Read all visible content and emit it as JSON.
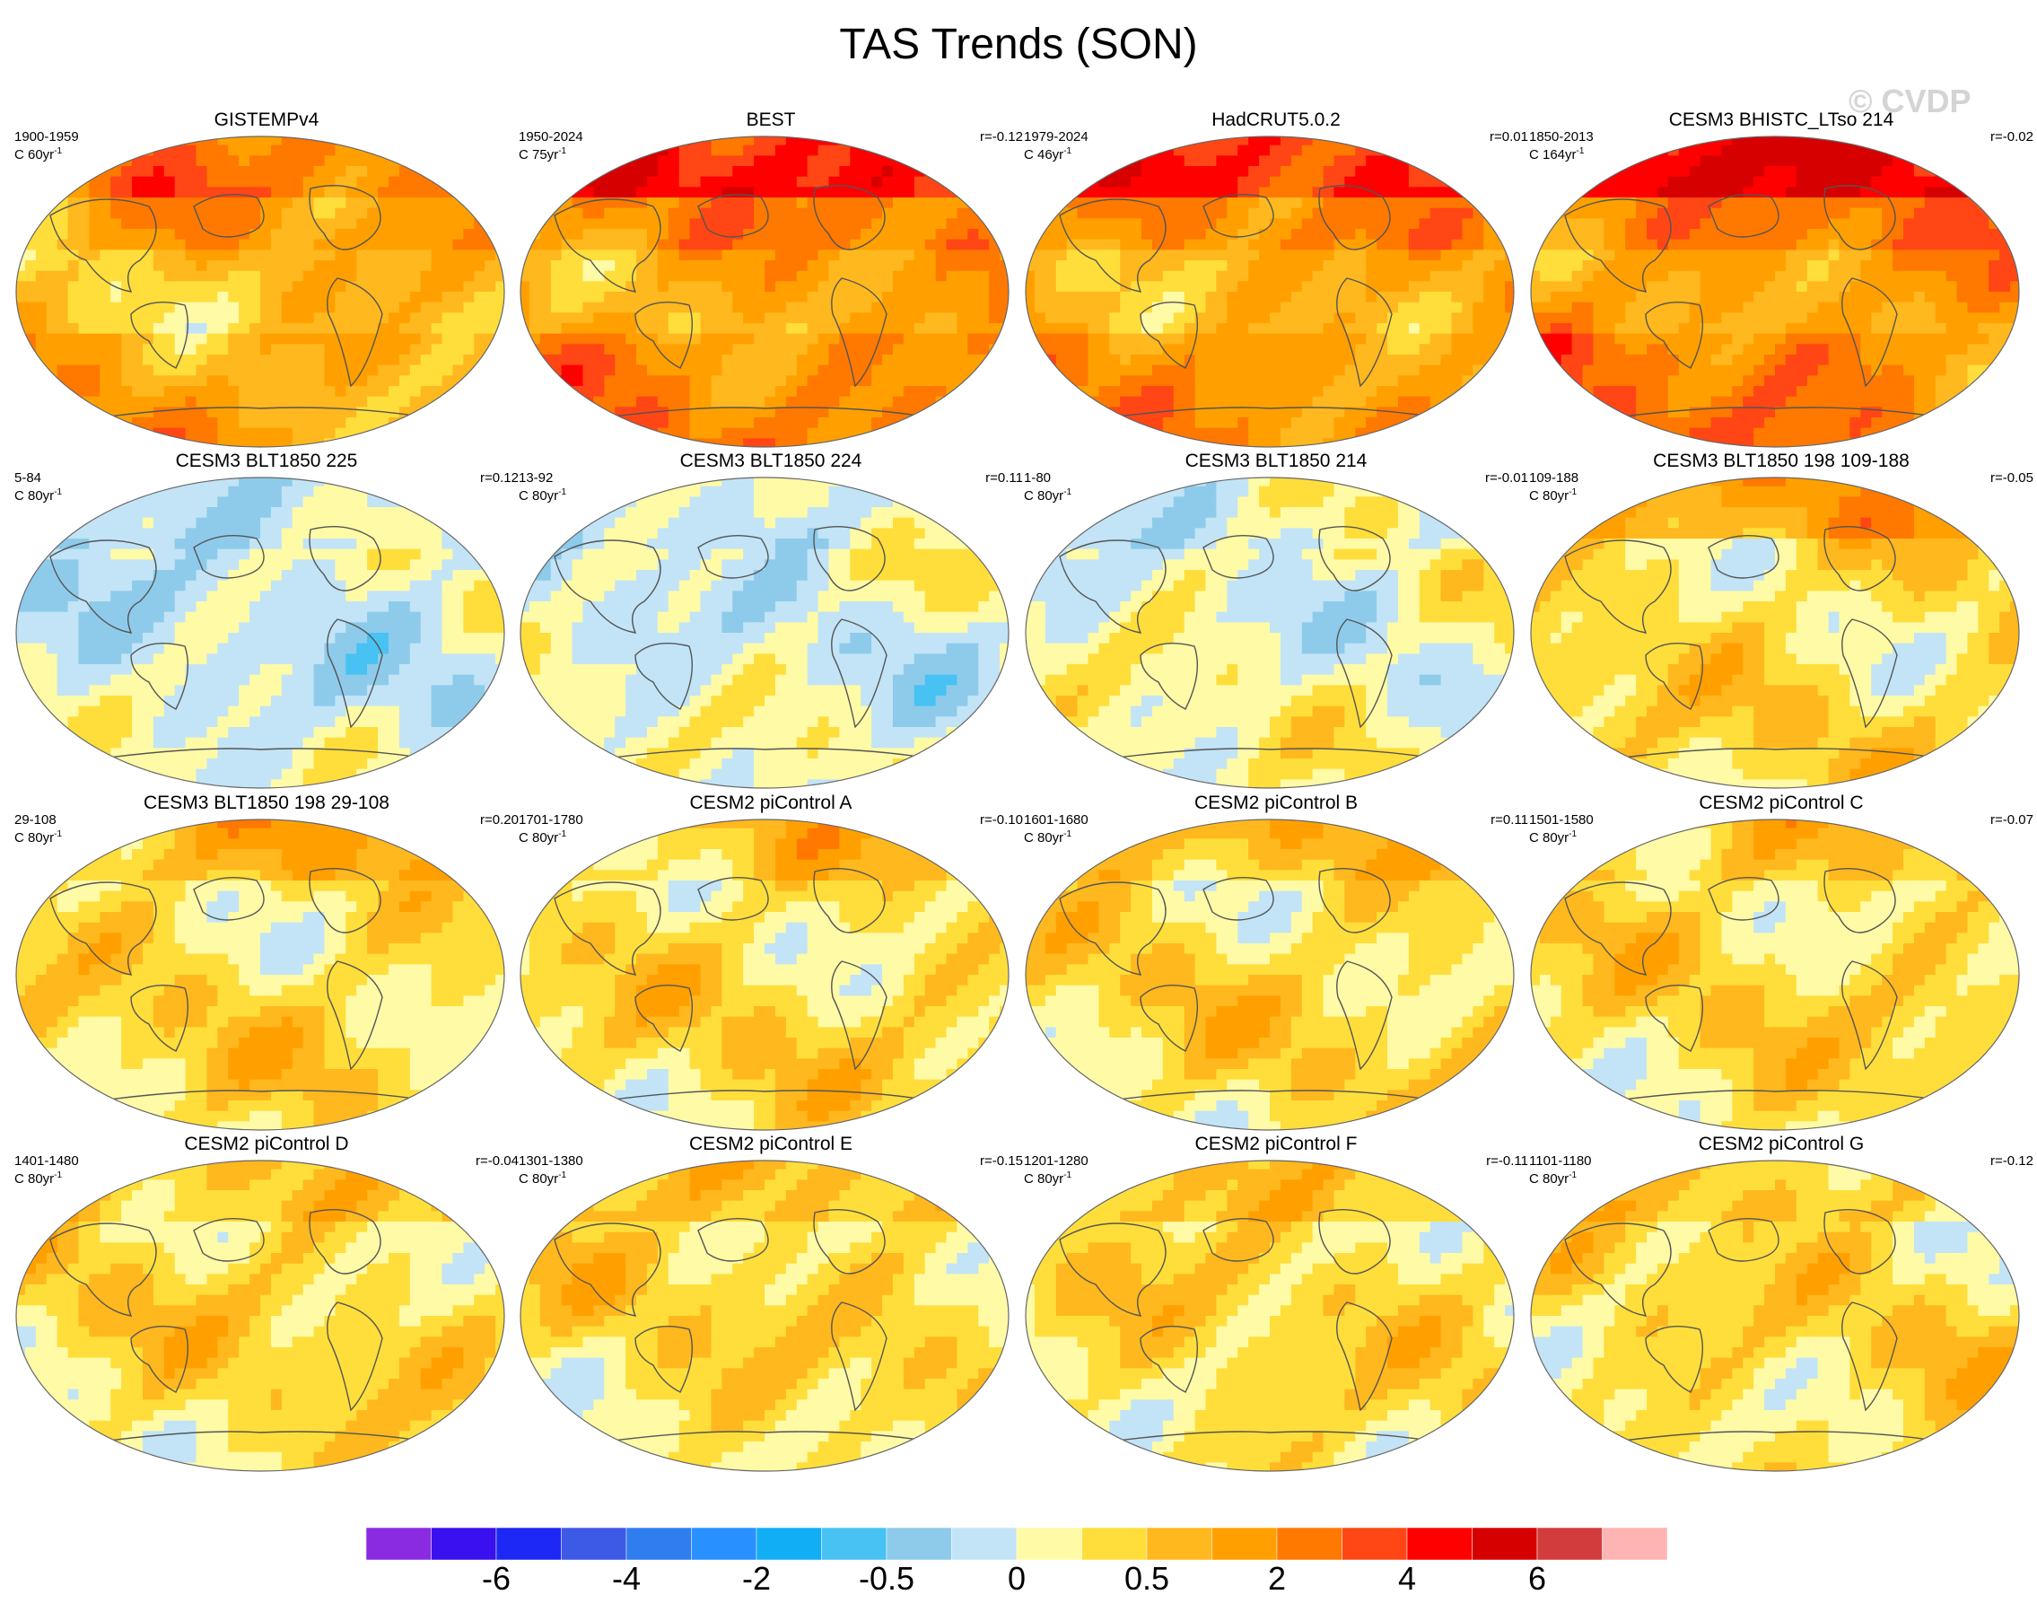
{
  "title": "TAS Trends (SON)",
  "watermark": "© CVDP",
  "chart_data": {
    "type": "heatmap",
    "projection": "Robinson",
    "variable": "TAS",
    "season": "SON",
    "panels": [
      {
        "title": "GISTEMPv4",
        "years": "1900-1959",
        "units": "C 60yr",
        "r": "",
        "pattern": "warm",
        "strength": 0.45,
        "seed": 1
      },
      {
        "title": "BEST",
        "years": "1950-2024",
        "units": "C 75yr",
        "r": "r=-0.12",
        "pattern": "warm",
        "strength": 0.75,
        "seed": 2
      },
      {
        "title": "HadCRUT5.0.2",
        "years": "1979-2024",
        "units": "C 46yr",
        "r": "r=0.01",
        "pattern": "warm",
        "strength": 0.65,
        "seed": 3
      },
      {
        "title": "CESM3 BHISTC_LTso 214",
        "years": "1850-2013",
        "units": "C 164yr",
        "r": "r=-0.02",
        "pattern": "warm",
        "strength": 0.85,
        "seed": 4
      },
      {
        "title": "CESM3 BLT1850 225",
        "years": "5-84",
        "units": "C 80yr",
        "r": "r=0.12",
        "pattern": "cool",
        "strength": 0.6,
        "seed": 5
      },
      {
        "title": "CESM3 BLT1850 224",
        "years": "13-92",
        "units": "C 80yr",
        "r": "r=0.11",
        "pattern": "cool",
        "strength": 0.45,
        "seed": 6
      },
      {
        "title": "CESM3 BLT1850 214",
        "years": "1-80",
        "units": "C 80yr",
        "r": "r=-0.01",
        "pattern": "cool",
        "strength": 0.3,
        "seed": 7
      },
      {
        "title": "CESM3 BLT1850 198 109-188",
        "years": "109-188",
        "units": "C 80yr",
        "r": "r=-0.05",
        "pattern": "mixed",
        "strength": 0.4,
        "seed": 8
      },
      {
        "title": "CESM3 BLT1850 198 29-108",
        "years": "29-108",
        "units": "C 80yr",
        "r": "r=0.20",
        "pattern": "mixed",
        "strength": 0.3,
        "seed": 9
      },
      {
        "title": "CESM2 piControl A",
        "years": "1701-1780",
        "units": "C 80yr",
        "r": "r=-0.10",
        "pattern": "mixed",
        "strength": 0.2,
        "seed": 10
      },
      {
        "title": "CESM2 piControl B",
        "years": "1601-1680",
        "units": "C 80yr",
        "r": "r=0.11",
        "pattern": "mixed",
        "strength": 0.25,
        "seed": 11
      },
      {
        "title": "CESM2 piControl C",
        "years": "1501-1580",
        "units": "C 80yr",
        "r": "r=-0.07",
        "pattern": "mixed",
        "strength": 0.2,
        "seed": 12
      },
      {
        "title": "CESM2 piControl D",
        "years": "1401-1480",
        "units": "C 80yr",
        "r": "r=-0.04",
        "pattern": "mixed",
        "strength": 0.25,
        "seed": 13
      },
      {
        "title": "CESM2 piControl E",
        "years": "1301-1380",
        "units": "C 80yr",
        "r": "r=-0.15",
        "pattern": "mixed",
        "strength": 0.3,
        "seed": 14
      },
      {
        "title": "CESM2 piControl F",
        "years": "1201-1280",
        "units": "C 80yr",
        "r": "r=-0.11",
        "pattern": "mixed",
        "strength": 0.3,
        "seed": 15
      },
      {
        "title": "CESM2 piControl G",
        "years": "1101-1180",
        "units": "C 80yr",
        "r": "r=-0.12",
        "pattern": "mixed",
        "strength": 0.2,
        "seed": 16
      }
    ],
    "colorbar": {
      "colors": [
        "#8a2be2",
        "#3b10ee",
        "#1e28f5",
        "#3c5ae6",
        "#2f7def",
        "#2891ff",
        "#12aef5",
        "#48c2f2",
        "#8ecbeb",
        "#c2e4f6",
        "#fffaa6",
        "#ffde3b",
        "#ffb81e",
        "#ffa000",
        "#ff7800",
        "#ff4614",
        "#ff0000",
        "#d70000",
        "#d23c3c",
        "#ffb4b4"
      ],
      "tick_labels": [
        "-6",
        "-4",
        "-2",
        "-0.5",
        "0",
        "0.5",
        "2",
        "4",
        "6"
      ],
      "tick_boundaries": [
        2,
        4,
        6,
        8,
        10,
        12,
        14,
        16,
        18
      ]
    }
  }
}
